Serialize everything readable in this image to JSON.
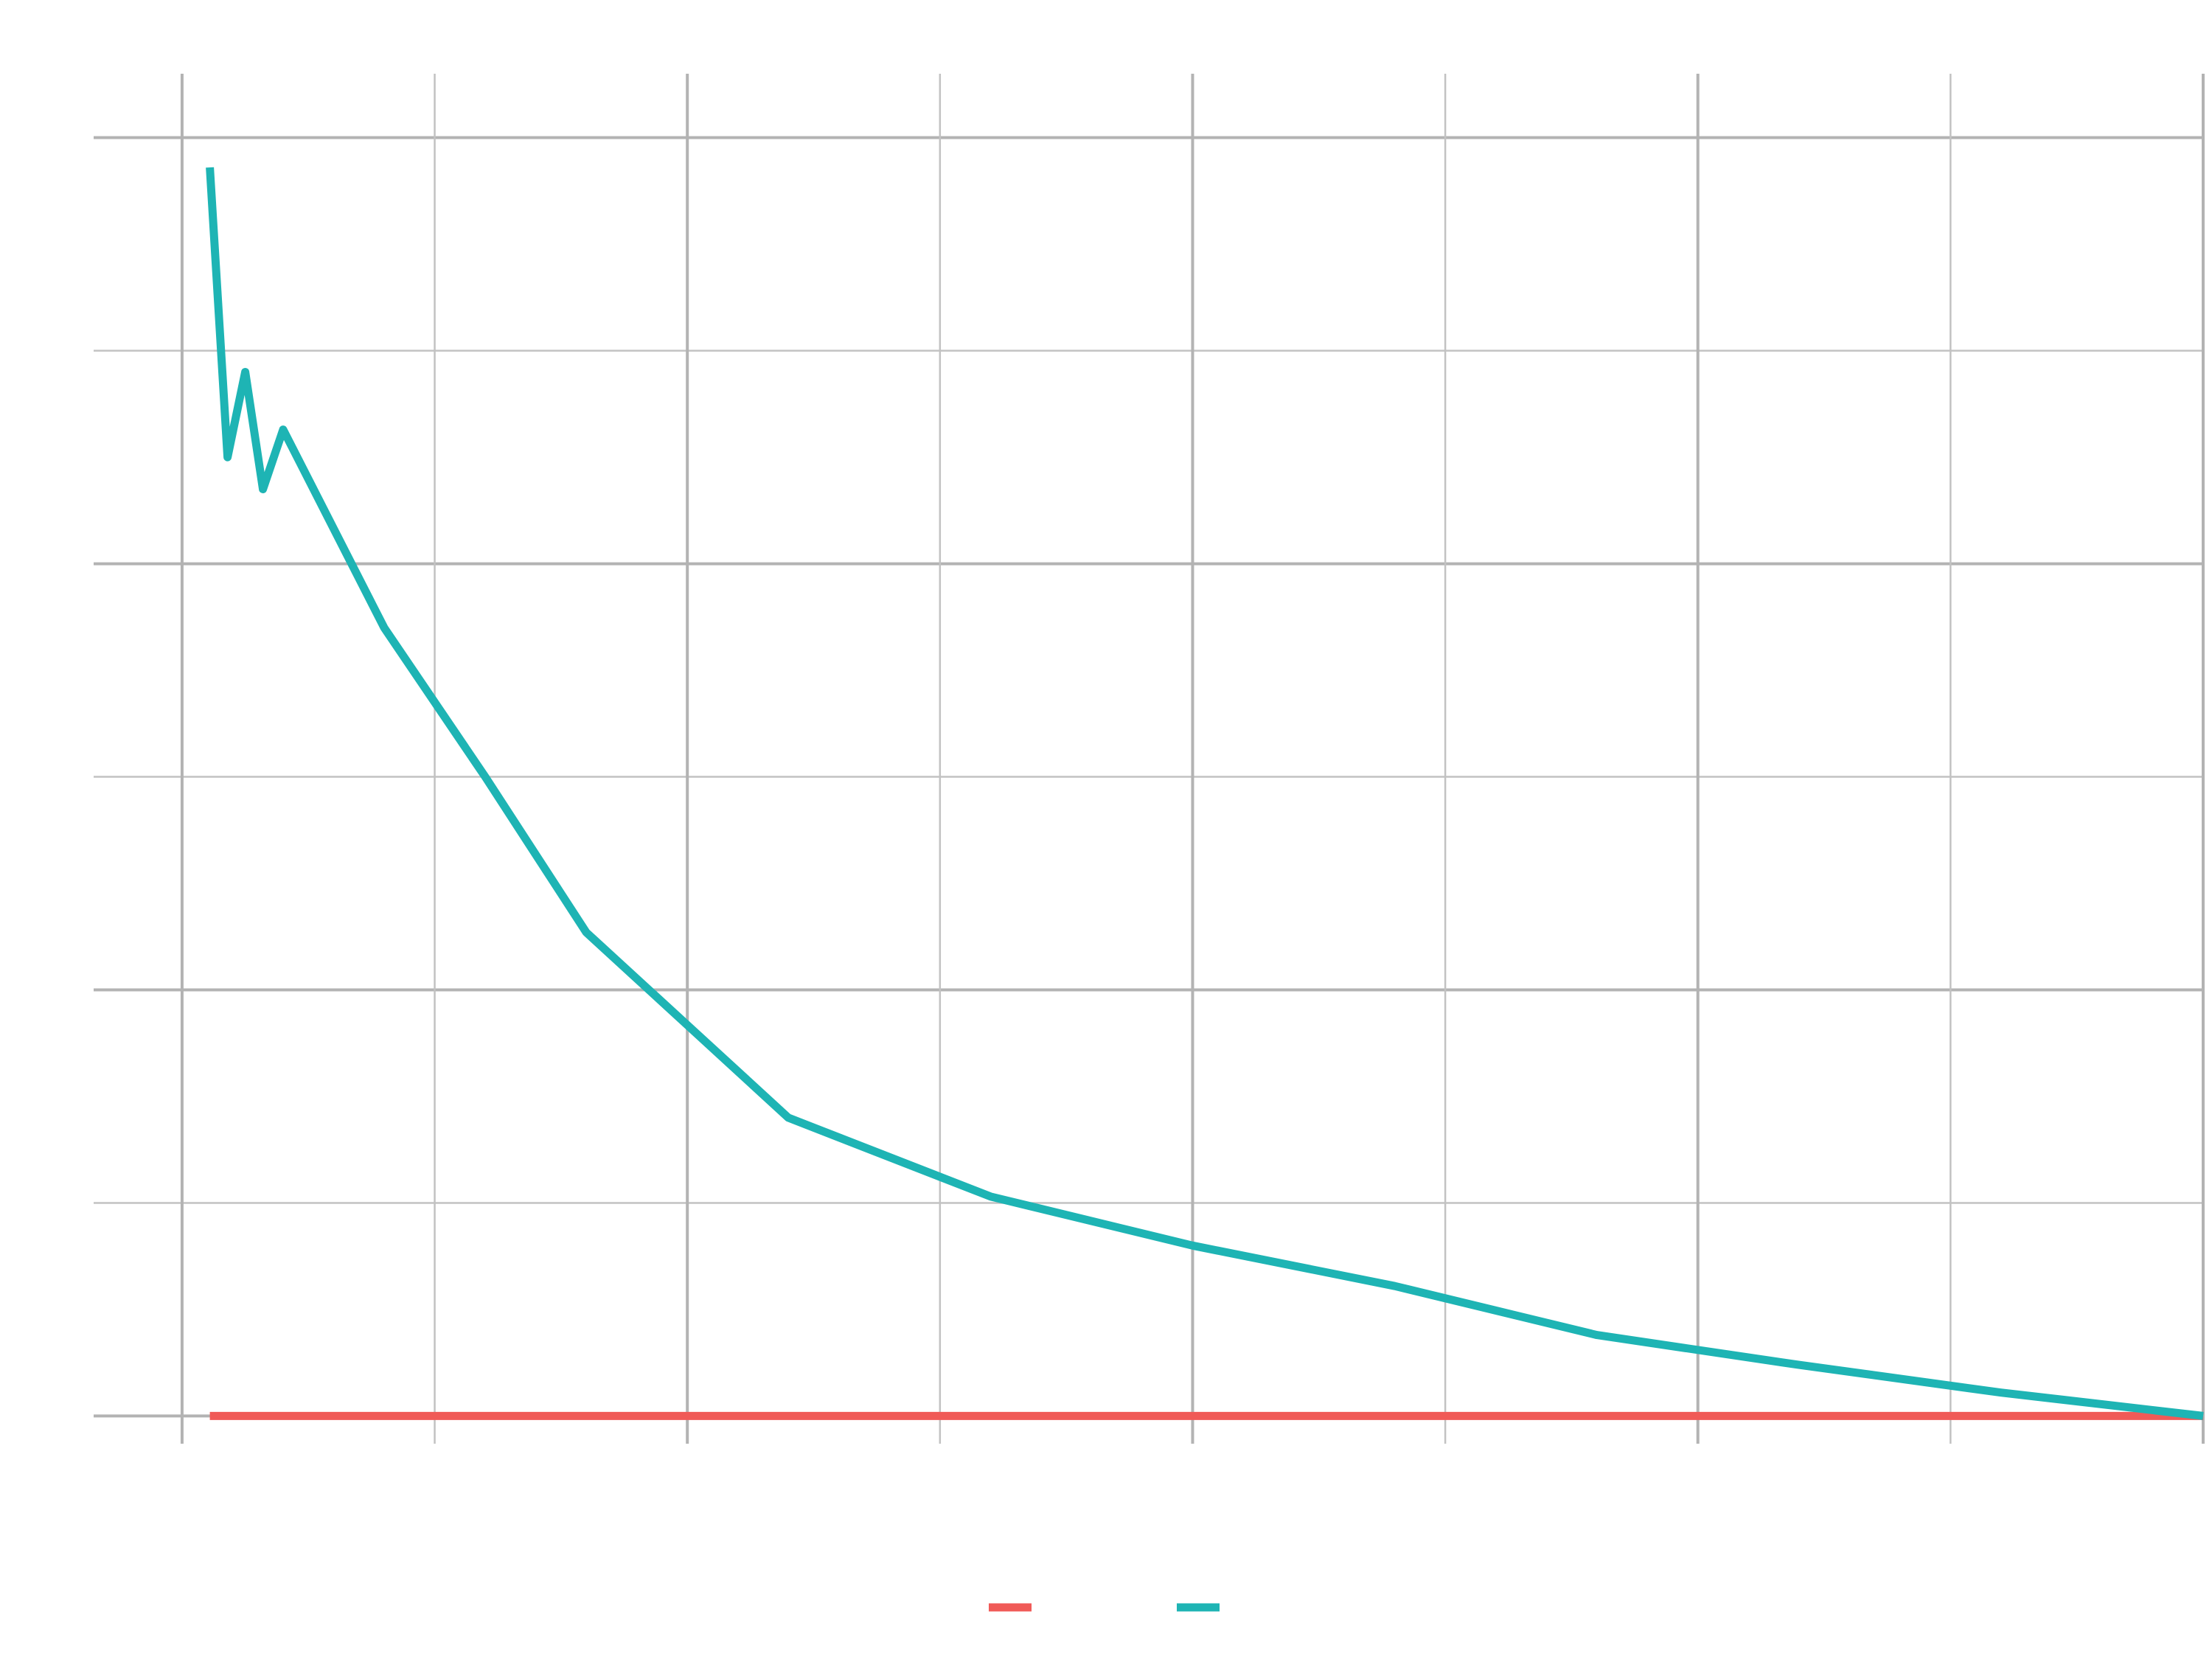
{
  "chart_data": {
    "type": "line",
    "title": "",
    "xlabel": "",
    "ylabel": "",
    "xlim": [
      -0.35,
      8.0
    ],
    "ylim": [
      -0.13,
      6.3
    ],
    "x_major_ticks": [
      0,
      2,
      4,
      6,
      8
    ],
    "x_minor_ticks": [
      1,
      3,
      5,
      7
    ],
    "y_major_ticks": [
      0,
      2,
      4,
      6
    ],
    "y_minor_ticks": [
      1,
      3,
      5
    ],
    "grid": true,
    "legend_position": "bottom",
    "series": [
      {
        "color": "#F05A57",
        "x": [
          0.11,
          8.0
        ],
        "y": [
          0.0,
          0.0
        ]
      },
      {
        "color": "#1EB4B4",
        "x": [
          0.11,
          0.18,
          0.25,
          0.32,
          0.4,
          0.8,
          1.2,
          1.6,
          2.4,
          3.2,
          4.0,
          4.8,
          5.6,
          6.4,
          7.2,
          8.0
        ],
        "y": [
          5.86,
          4.5,
          4.9,
          4.35,
          4.63,
          3.7,
          3.0,
          2.27,
          1.4,
          1.03,
          0.8,
          0.61,
          0.38,
          0.24,
          0.11,
          0.0
        ]
      }
    ]
  }
}
